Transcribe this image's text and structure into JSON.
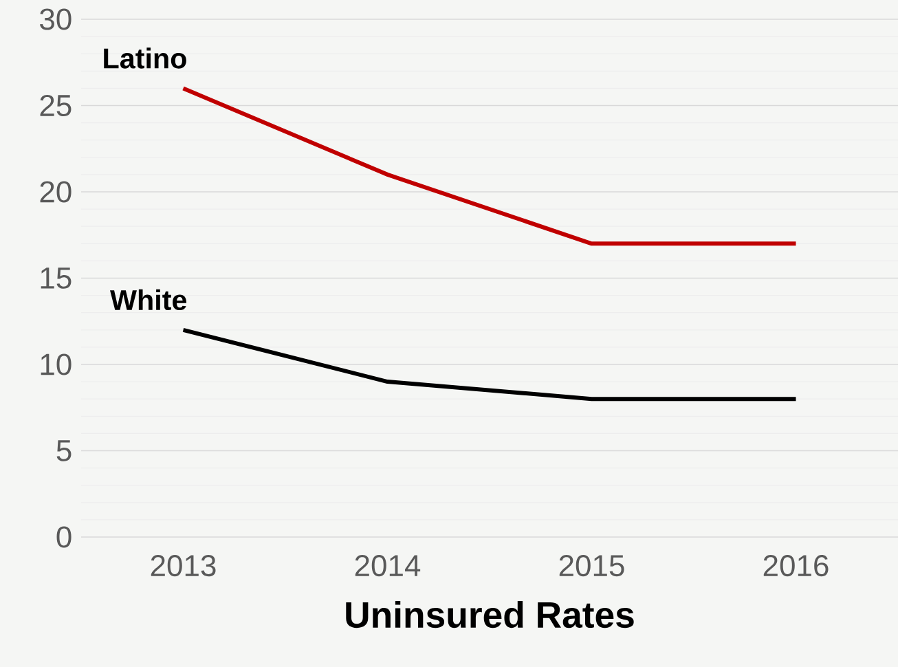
{
  "chart_data": {
    "type": "line",
    "xlabel": "Uninsured Rates",
    "categories": [
      "2013",
      "2014",
      "2015",
      "2016"
    ],
    "series": [
      {
        "name": "Latino",
        "color": "#c00000",
        "values": [
          26,
          21,
          17,
          17
        ]
      },
      {
        "name": "White",
        "color": "#000000",
        "values": [
          12,
          9,
          8,
          8
        ]
      }
    ],
    "ylim": [
      0,
      30
    ],
    "yticks": [
      0,
      5,
      10,
      15,
      20,
      25,
      30
    ],
    "grid": true
  }
}
